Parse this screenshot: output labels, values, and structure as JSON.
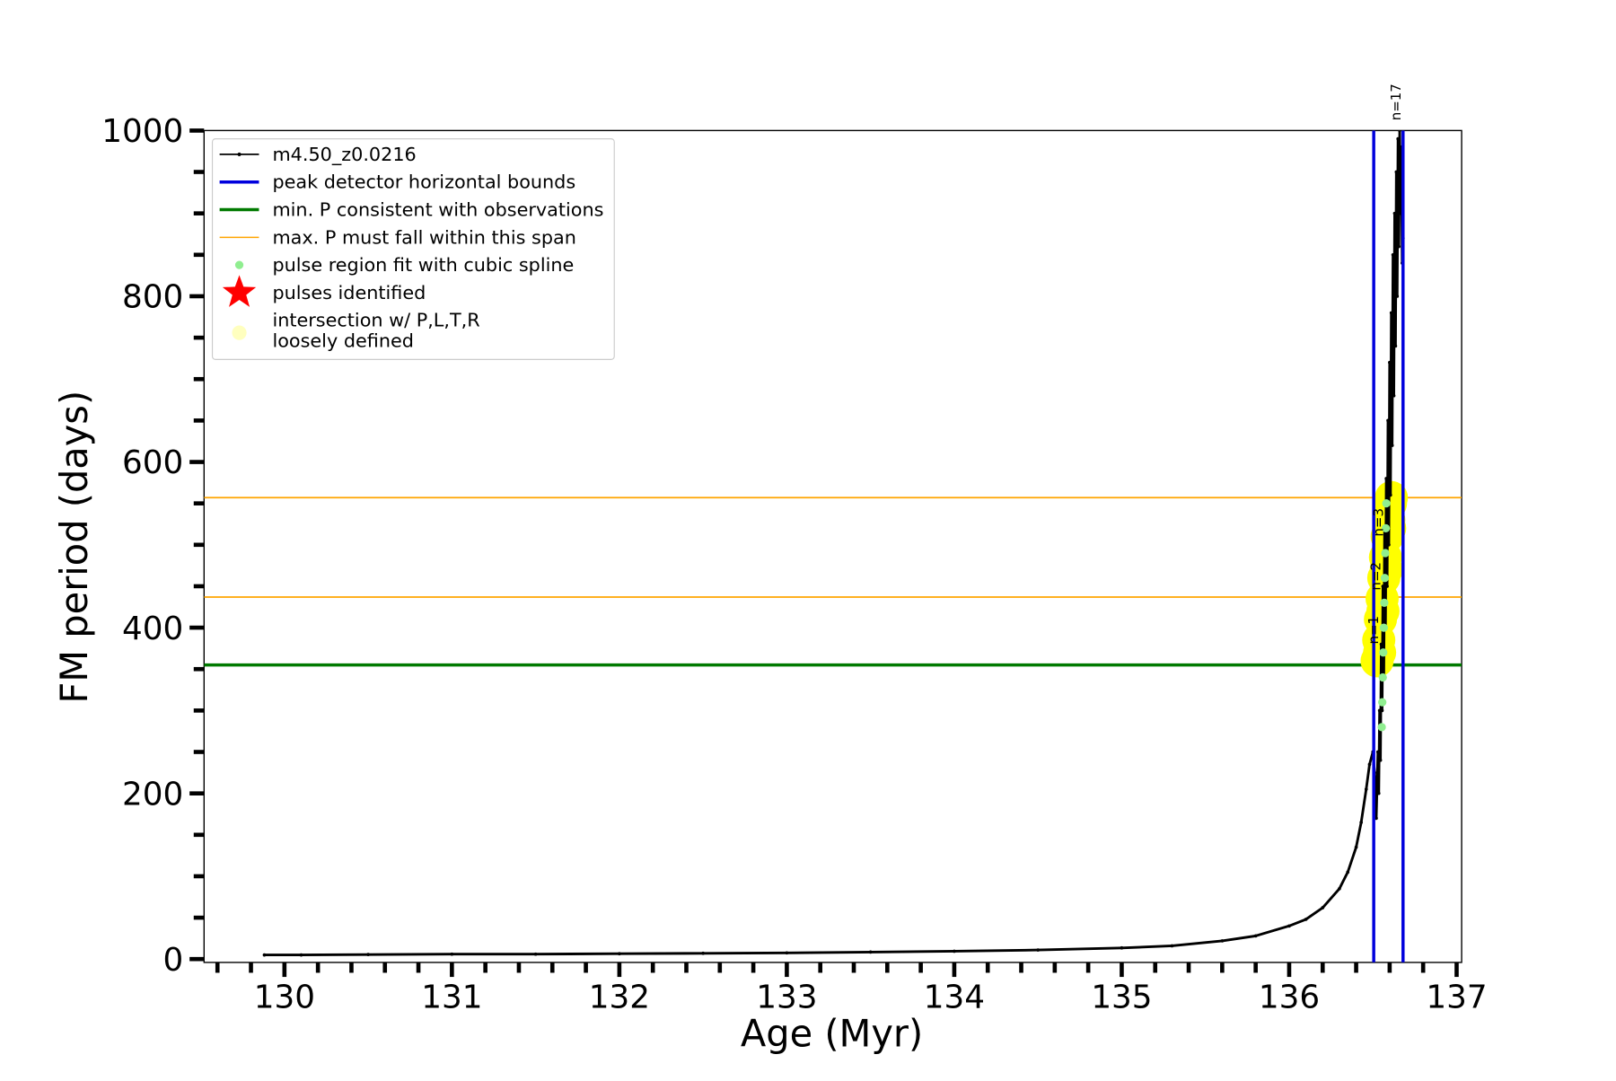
{
  "chart_data": {
    "type": "line",
    "xlabel": "Age (Myr)",
    "ylabel": "FM period (days)",
    "xlim": [
      129.52,
      137.03
    ],
    "ylim": [
      -4,
      1000
    ],
    "xticks": [
      130,
      131,
      132,
      133,
      134,
      135,
      136,
      137
    ],
    "yticks": [
      0,
      200,
      400,
      600,
      800,
      1000
    ],
    "xminorticks": [
      129.6,
      129.8,
      130.2,
      130.4,
      130.6,
      130.8,
      131.2,
      131.4,
      131.6,
      131.8,
      132.2,
      132.4,
      132.6,
      132.8,
      133.2,
      133.4,
      133.6,
      133.8,
      134.2,
      134.4,
      134.6,
      134.8,
      135.2,
      135.4,
      135.6,
      135.8,
      136.2,
      136.4,
      136.6,
      136.8
    ],
    "yminorticks": [
      50,
      100,
      150,
      250,
      300,
      350,
      450,
      500,
      550,
      650,
      700,
      750,
      850,
      900,
      950
    ],
    "series": [
      {
        "name": "m4.50_z0.0216",
        "color": "#000000",
        "style": "line",
        "x": [
          129.88,
          130.1,
          130.5,
          131,
          131.5,
          132,
          132.5,
          133,
          133.5,
          134,
          134.5,
          135,
          135.3,
          135.6,
          135.8,
          136.0,
          136.1,
          136.2,
          136.3,
          136.35,
          136.4,
          136.43,
          136.46,
          136.48,
          136.5,
          136.51,
          136.52,
          136.53,
          136.535,
          136.54,
          136.545,
          136.55,
          136.555,
          136.56,
          136.565,
          136.57,
          136.575,
          136.58,
          136.585,
          136.59,
          136.595,
          136.6,
          136.605,
          136.61,
          136.615,
          136.62,
          136.625,
          136.63,
          136.635,
          136.64,
          136.645,
          136.65,
          136.655,
          136.66,
          136.665,
          136.67,
          136.675,
          136.68
        ],
        "values": [
          5,
          5,
          5.5,
          6,
          6,
          6.5,
          7,
          7.5,
          8.5,
          9.5,
          11,
          13.5,
          16,
          22,
          28,
          40,
          48,
          62,
          85,
          105,
          135,
          165,
          205,
          235,
          250,
          225,
          170,
          250,
          200,
          300,
          240,
          380,
          300,
          450,
          340,
          520,
          400,
          580,
          450,
          650,
          500,
          720,
          560,
          780,
          620,
          850,
          680,
          900,
          740,
          950,
          800,
          990,
          860,
          1000,
          900,
          980,
          840,
          870
        ]
      },
      {
        "name": "peak detector horizontal bounds",
        "color": "#0000dd",
        "style": "vline",
        "x": [
          136.505,
          136.68
        ]
      },
      {
        "name": "min. P consistent with observations",
        "color": "#007a00",
        "style": "hline",
        "values": [
          355
        ]
      },
      {
        "name": "max. P must fall within this span",
        "color": "#ffa500",
        "style": "hline",
        "values": [
          557,
          437
        ]
      },
      {
        "name": "pulse region fit with cubic spline",
        "color": "#90ee90",
        "style": "scatter",
        "x": [
          136.553,
          136.556,
          136.559,
          136.562,
          136.565,
          136.568,
          136.571,
          136.574,
          136.577,
          136.58
        ],
        "values": [
          280,
          310,
          340,
          370,
          400,
          430,
          460,
          490,
          520,
          550
        ]
      },
      {
        "name": "pulses identified",
        "color": "#ff0000",
        "style": "star",
        "x": [],
        "values": []
      },
      {
        "name": "intersection w/ P,L,T,R\nloosely defined",
        "color": "#ffff00",
        "style": "bigscatter",
        "x": [
          136.525,
          136.535,
          136.545,
          136.555,
          136.565,
          136.575,
          136.585,
          136.595,
          136.605,
          136.61,
          136.54,
          136.56,
          136.58,
          136.6
        ],
        "values": [
          360,
          385,
          410,
          435,
          460,
          485,
          510,
          530,
          550,
          557,
          370,
          420,
          470,
          520
        ]
      }
    ],
    "annotations": [
      {
        "text": "n=1",
        "x": 136.53,
        "y": 380
      },
      {
        "text": "n=2",
        "x": 136.545,
        "y": 445
      },
      {
        "text": "n=3",
        "x": 136.56,
        "y": 510
      },
      {
        "text": "n=17",
        "x": 136.665,
        "y": 1012
      }
    ]
  }
}
